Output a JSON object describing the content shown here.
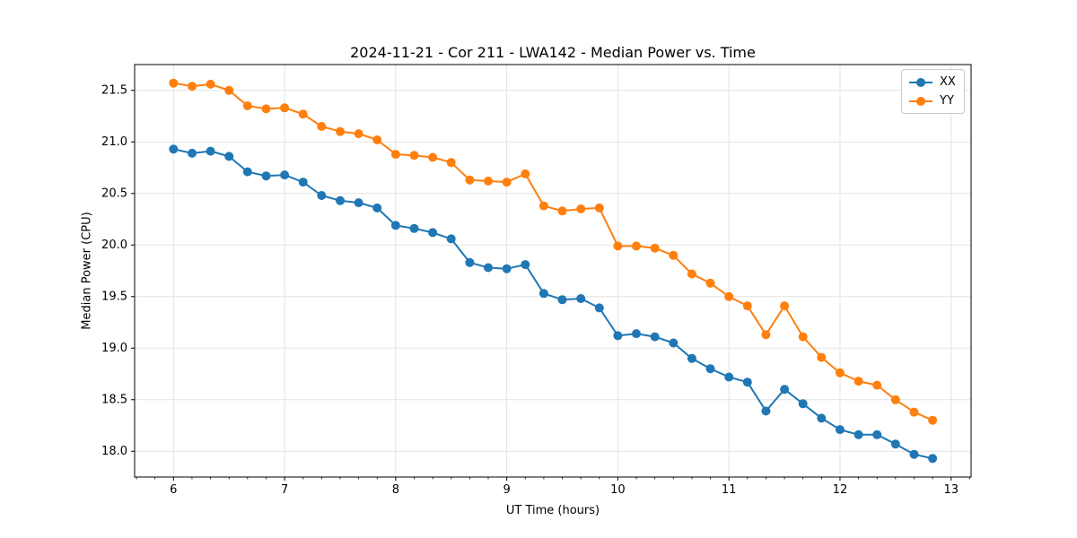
{
  "figure": {
    "background": "#ffffff",
    "spine_color": "#000000",
    "tick_color": "#000000",
    "text_color": "#000000"
  },
  "legend": {
    "position": "upper right",
    "entries": [
      "XX",
      "YY"
    ]
  },
  "chart_data": {
    "type": "line",
    "title": "2024-11-21 - Cor 211 - LWA142 - Median Power vs. Time",
    "xlabel": "UT Time (hours)",
    "ylabel": "Median Power (CPU)",
    "xlim": [
      5.65,
      13.18
    ],
    "ylim": [
      17.75,
      21.75
    ],
    "xticks": [
      6,
      7,
      8,
      9,
      10,
      11,
      12,
      13
    ],
    "xtick_labels": [
      "6",
      "7",
      "8",
      "9",
      "10",
      "11",
      "12",
      "13"
    ],
    "yticks": [
      18.0,
      18.5,
      19.0,
      19.5,
      20.0,
      20.5,
      21.0,
      21.5
    ],
    "ytick_labels": [
      "18.0",
      "18.5",
      "19.0",
      "19.5",
      "20.0",
      "20.5",
      "21.0",
      "21.5"
    ],
    "x_minor_step": 0.166667,
    "grid": true,
    "grid_color": "#e3e3e3",
    "legend_position": "upper right",
    "marker": "circle",
    "marker_radius": 5,
    "line_width": 2,
    "x": [
      6.0,
      6.1667,
      6.3333,
      6.5,
      6.6667,
      6.8333,
      7.0,
      7.1667,
      7.3333,
      7.5,
      7.6667,
      7.8333,
      8.0,
      8.1667,
      8.3333,
      8.5,
      8.6667,
      8.8333,
      9.0,
      9.1667,
      9.3333,
      9.5,
      9.6667,
      9.8333,
      10.0,
      10.1667,
      10.3333,
      10.5,
      10.6667,
      10.8333,
      11.0,
      11.1667,
      11.3333,
      11.5,
      11.6667,
      11.8333,
      12.0,
      12.1667,
      12.3333,
      12.5,
      12.6667,
      12.8333
    ],
    "series": [
      {
        "name": "XX",
        "color": "#1f77b4",
        "values": [
          20.93,
          20.89,
          20.91,
          20.86,
          20.71,
          20.67,
          20.68,
          20.61,
          20.48,
          20.43,
          20.41,
          20.36,
          20.19,
          20.16,
          20.12,
          20.06,
          19.83,
          19.78,
          19.77,
          19.81,
          19.53,
          19.47,
          19.48,
          19.39,
          19.12,
          19.14,
          19.11,
          19.05,
          18.9,
          18.8,
          18.72,
          18.67,
          18.39,
          18.6,
          18.46,
          18.32,
          18.21,
          18.16,
          18.16,
          18.07,
          17.97,
          17.93
        ]
      },
      {
        "name": "YY",
        "color": "#ff7f0e",
        "values": [
          21.57,
          21.54,
          21.56,
          21.5,
          21.35,
          21.32,
          21.33,
          21.27,
          21.15,
          21.1,
          21.08,
          21.02,
          20.88,
          20.87,
          20.85,
          20.8,
          20.63,
          20.62,
          20.61,
          20.69,
          20.38,
          20.33,
          20.35,
          20.36,
          19.99,
          19.99,
          19.97,
          19.9,
          19.72,
          19.63,
          19.5,
          19.41,
          19.13,
          19.41,
          19.11,
          18.91,
          18.76,
          18.68,
          18.64,
          18.5,
          18.38,
          18.3
        ]
      }
    ]
  }
}
